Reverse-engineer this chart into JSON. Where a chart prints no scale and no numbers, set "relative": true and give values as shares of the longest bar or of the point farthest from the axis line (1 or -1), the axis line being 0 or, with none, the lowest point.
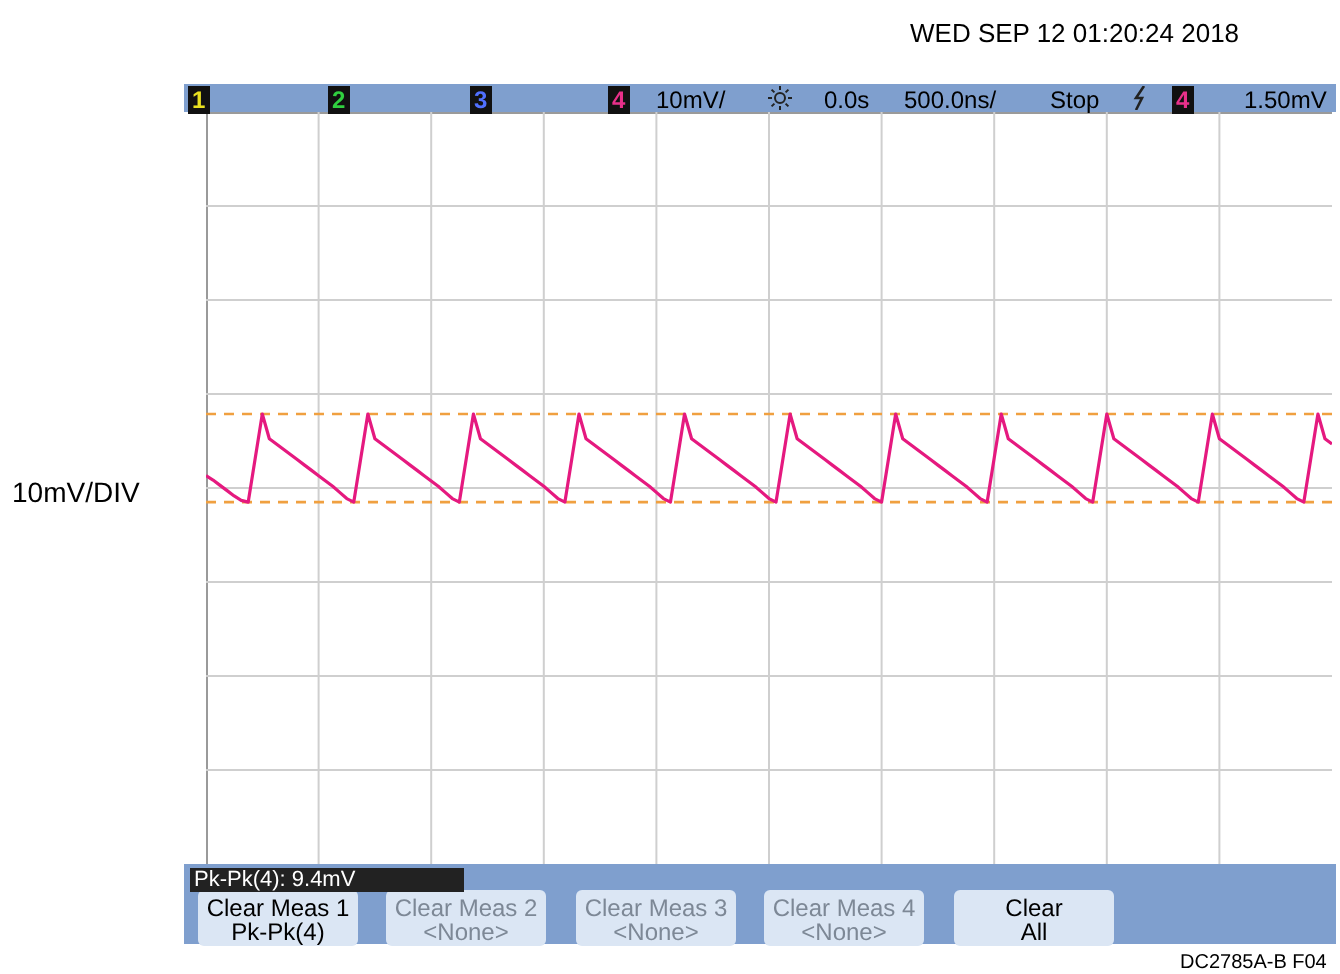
{
  "chart_data": {
    "type": "line",
    "relative": true,
    "grid": true,
    "color": "#e5197f",
    "categories": [
      null,
      null,
      null,
      null,
      null,
      null,
      null,
      null,
      null,
      null,
      null,
      null,
      null,
      null,
      null,
      null,
      null,
      null,
      null,
      null,
      null,
      null,
      null,
      null,
      null,
      null,
      null,
      null,
      null,
      null,
      null,
      null,
      null,
      null,
      null,
      null,
      null,
      null,
      null,
      null,
      null,
      null,
      null,
      null,
      null,
      null,
      null,
      null,
      null,
      null,
      null,
      null,
      null,
      null,
      null,
      null,
      null,
      null,
      null,
      null,
      null,
      null,
      null,
      null,
      null,
      null,
      null,
      null,
      null,
      null,
      null,
      null,
      null,
      null,
      null,
      null,
      null,
      null,
      null,
      null,
      null,
      null,
      null,
      null,
      null,
      null,
      null,
      null,
      null,
      null,
      null,
      null,
      null,
      null,
      null,
      null,
      null,
      null,
      null,
      null,
      null,
      null,
      null,
      null,
      null,
      null,
      null,
      null,
      null,
      null,
      null,
      null,
      null,
      null,
      null,
      null,
      null,
      null,
      null,
      null,
      null,
      null,
      null,
      null,
      null,
      null,
      null,
      null,
      null,
      null,
      null,
      null,
      null,
      null,
      null,
      null,
      null,
      null,
      null,
      null,
      null,
      null,
      null,
      null,
      null,
      null,
      null,
      null,
      null,
      null,
      null,
      null,
      null,
      null,
      null,
      null,
      null,
      null,
      null,
      null,
      null
    ],
    "values": [
      0.3,
      0.25,
      0.19,
      0.13,
      0.07,
      0.02,
      0,
      0.5,
      1,
      0.72,
      0.66,
      0.6,
      0.54,
      0.48,
      0.42,
      0.36,
      0.3,
      0.24,
      0.18,
      0.11,
      0.04,
      0,
      0.5,
      1,
      0.72,
      0.66,
      0.6,
      0.54,
      0.48,
      0.42,
      0.36,
      0.3,
      0.24,
      0.18,
      0.11,
      0.04,
      0,
      0.5,
      1,
      0.72,
      0.66,
      0.6,
      0.54,
      0.48,
      0.42,
      0.36,
      0.3,
      0.24,
      0.18,
      0.11,
      0.04,
      0,
      0.5,
      1,
      0.72,
      0.66,
      0.6,
      0.54,
      0.48,
      0.42,
      0.36,
      0.3,
      0.24,
      0.18,
      0.11,
      0.04,
      0,
      0.5,
      1,
      0.72,
      0.66,
      0.6,
      0.54,
      0.48,
      0.42,
      0.36,
      0.3,
      0.24,
      0.18,
      0.11,
      0.04,
      0,
      0.5,
      1,
      0.72,
      0.66,
      0.6,
      0.54,
      0.48,
      0.42,
      0.36,
      0.3,
      0.24,
      0.18,
      0.11,
      0.04,
      0,
      0.5,
      1,
      0.72,
      0.66,
      0.6,
      0.54,
      0.48,
      0.42,
      0.36,
      0.3,
      0.24,
      0.18,
      0.11,
      0.04,
      0,
      0.5,
      1,
      0.72,
      0.66,
      0.6,
      0.54,
      0.48,
      0.42,
      0.36,
      0.3,
      0.24,
      0.18,
      0.11,
      0.04,
      0,
      0.5,
      1,
      0.72,
      0.66,
      0.6,
      0.54,
      0.48,
      0.42,
      0.36,
      0.3,
      0.24,
      0.18,
      0.11,
      0.04,
      0,
      0.5,
      1,
      0.72,
      0.66,
      0.6,
      0.54,
      0.48,
      0.42,
      0.36,
      0.3,
      0.24,
      0.18,
      0.11,
      0.04,
      0,
      0.5,
      1,
      0.72,
      0.66
    ],
    "ref_lines": [
      {
        "axis": "y",
        "value": 1,
        "color": "#f0a040",
        "line_style": "dashed"
      },
      {
        "axis": "y",
        "value": 0,
        "color": "#f0a040",
        "line_style": "dashed"
      }
    ],
    "annotations": [
      "WED SEP 12 01:20:24 2018",
      "1",
      "2",
      "3",
      "4",
      "10mV/",
      "0.0s",
      "500.0ns/",
      "Stop",
      "4",
      "1.50mV",
      "10mV/DIV",
      "Pk-Pk(4): 9.4mV",
      "Clear Meas 1",
      "Pk-Pk(4)",
      "Clear Meas 2",
      "<None>",
      "Clear Meas 3",
      "<None>",
      "Clear Meas 4",
      "<None>",
      "Clear",
      "All",
      "DC2785A-B F04"
    ]
  }
}
